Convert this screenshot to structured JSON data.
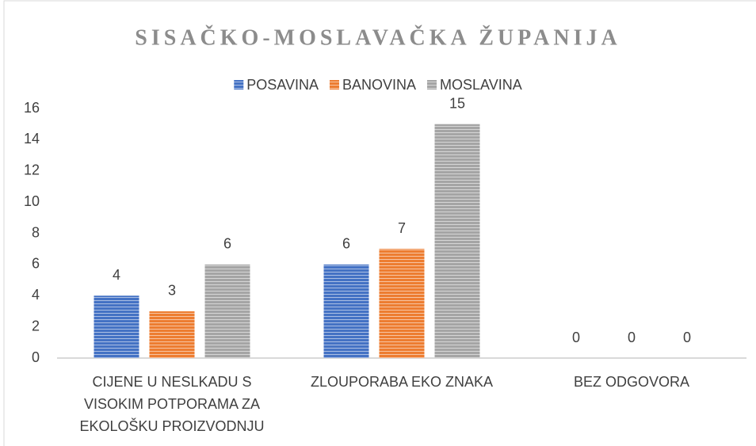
{
  "chart_data": {
    "type": "bar",
    "title": "SISAČKO-MOSLAVAČKA ŽUPANIJA",
    "categories": [
      "CIJENE U NESLKADU S VISOKIM POTPORAMA ZA EKOLOŠKU PROIZVODNJU",
      "ZLOUPORABA EKO ZNAKA",
      "BEZ ODGOVORA"
    ],
    "series": [
      {
        "name": "POSAVINA",
        "color": "#4472c4",
        "values": [
          4,
          6,
          0
        ]
      },
      {
        "name": "BANOVINA",
        "color": "#ed7d31",
        "values": [
          3,
          7,
          0
        ]
      },
      {
        "name": "MOSLAVINA",
        "color": "#a5a5a5",
        "values": [
          6,
          15,
          0
        ]
      }
    ],
    "ylim": [
      0,
      16
    ],
    "yticks": [
      0,
      2,
      4,
      6,
      8,
      10,
      12,
      14,
      16
    ],
    "legend": "top",
    "grid": false
  }
}
